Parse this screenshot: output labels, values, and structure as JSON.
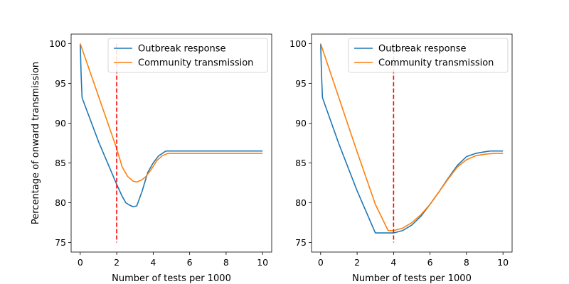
{
  "chart_data": [
    {
      "type": "line",
      "title": "",
      "xlabel": "Number of tests per 1000",
      "ylabel": "Percentage of onward transmission",
      "xlim": [
        -0.5,
        10.5
      ],
      "ylim": [
        73.8,
        101.2
      ],
      "xticks": [
        "0",
        "2",
        "4",
        "6",
        "8",
        "10"
      ],
      "yticks": [
        "75",
        "80",
        "85",
        "90",
        "95",
        "100"
      ],
      "grid": false,
      "legend_position": "top-right",
      "vline": {
        "x": 2,
        "color": "#ff0000",
        "style": "dashed"
      },
      "series": [
        {
          "name": "Outbreak response",
          "color": "#1f77b4",
          "x": [
            0,
            0.05,
            0.1,
            1,
            2,
            2.3,
            2.5,
            2.7,
            2.9,
            3.1,
            3.4,
            3.7,
            4.0,
            4.3,
            4.7,
            5.0,
            6.0,
            7.0,
            8.0,
            9.0,
            10.0
          ],
          "y": [
            100,
            96,
            93.2,
            87.7,
            82.3,
            80.8,
            80.0,
            79.7,
            79.5,
            79.6,
            81.5,
            83.8,
            85.0,
            85.9,
            86.5,
            86.5,
            86.5,
            86.5,
            86.5,
            86.5,
            86.5
          ]
        },
        {
          "name": "Community transmission",
          "color": "#ff7f0e",
          "x": [
            0,
            1,
            2,
            2.3,
            2.6,
            2.9,
            3.1,
            3.4,
            3.6,
            3.9,
            4.2,
            4.5,
            4.8,
            5.0,
            6.0,
            7.0,
            8.0,
            9.0,
            10.0
          ],
          "y": [
            100,
            93.4,
            86.8,
            84.5,
            83.3,
            82.7,
            82.6,
            82.9,
            83.3,
            84.2,
            85.3,
            85.9,
            86.2,
            86.2,
            86.2,
            86.2,
            86.2,
            86.2,
            86.2
          ]
        }
      ]
    },
    {
      "type": "line",
      "title": "",
      "xlabel": "Number of tests per 1000",
      "ylabel": "",
      "xlim": [
        -0.5,
        10.5
      ],
      "ylim": [
        73.8,
        101.2
      ],
      "xticks": [
        "0",
        "2",
        "4",
        "6",
        "8",
        "10"
      ],
      "yticks": [
        "75",
        "80",
        "85",
        "90",
        "95",
        "100"
      ],
      "grid": false,
      "legend_position": "top-right",
      "vline": {
        "x": 4,
        "color": "#ff0000",
        "style": "dashed"
      },
      "series": [
        {
          "name": "Outbreak response",
          "color": "#1f77b4",
          "x": [
            0,
            0.05,
            0.1,
            1,
            2,
            3,
            3.2,
            4,
            4.5,
            5,
            5.5,
            6,
            6.5,
            7,
            7.5,
            8,
            8.5,
            9,
            9.3,
            10
          ],
          "y": [
            100,
            96,
            93.2,
            87.4,
            81.5,
            76.2,
            76.2,
            76.2,
            76.5,
            77.2,
            78.3,
            79.8,
            81.4,
            83.1,
            84.7,
            85.8,
            86.2,
            86.4,
            86.5,
            86.5
          ]
        },
        {
          "name": "Community transmission",
          "color": "#ff7f0e",
          "x": [
            0,
            1,
            2,
            3,
            3.7,
            4,
            4.5,
            5,
            5.5,
            6,
            6.5,
            7,
            7.5,
            8,
            8.5,
            9,
            9.5,
            10
          ],
          "y": [
            100,
            93.2,
            86.4,
            79.8,
            76.5,
            76.5,
            76.8,
            77.5,
            78.5,
            79.8,
            81.4,
            83.0,
            84.5,
            85.4,
            85.9,
            86.1,
            86.2,
            86.2
          ]
        }
      ]
    }
  ]
}
